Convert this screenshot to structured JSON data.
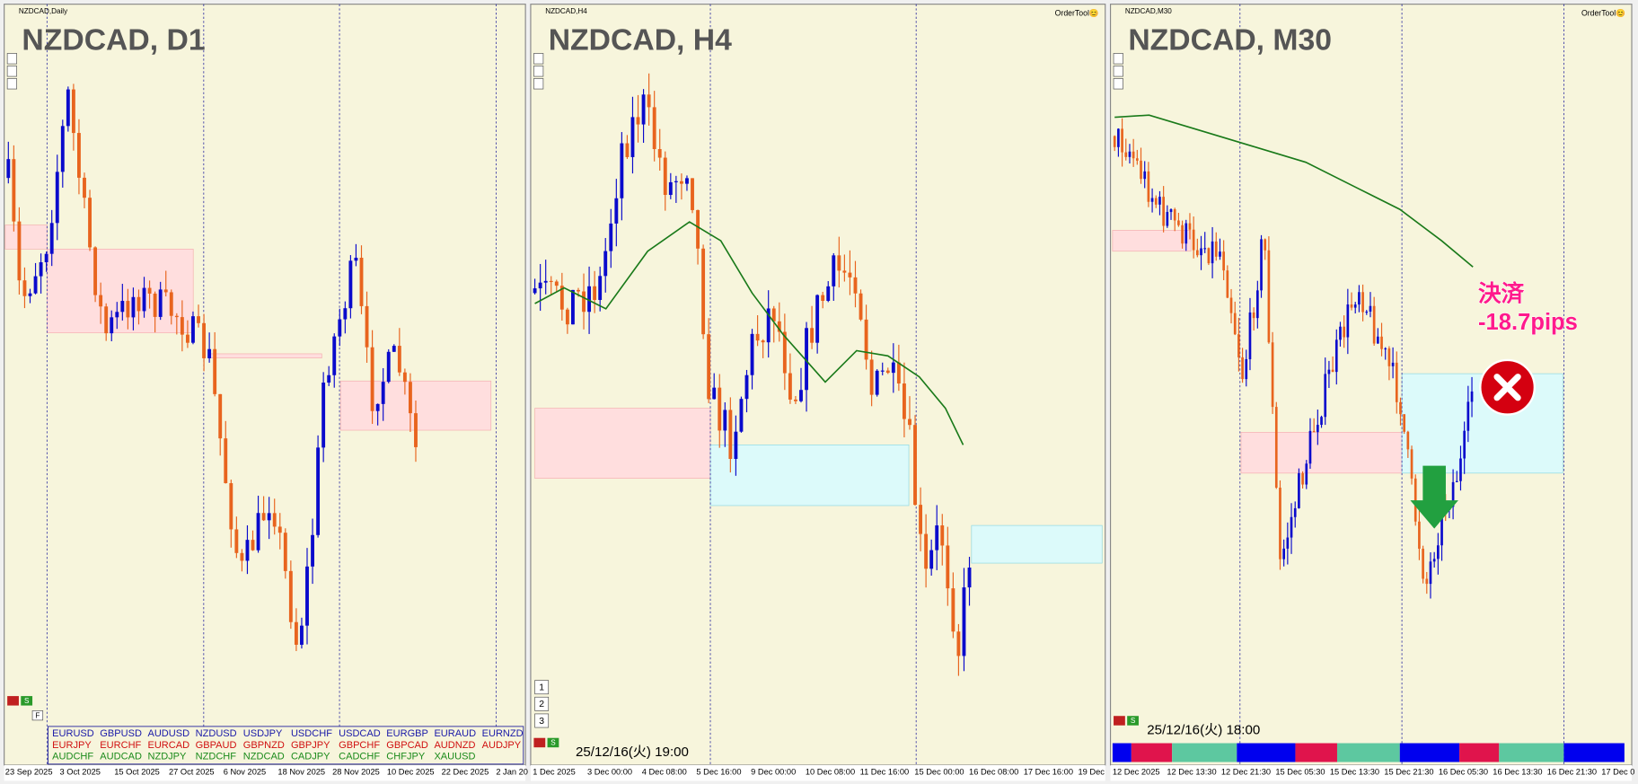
{
  "panels": [
    {
      "label": "NZDCAD,Daily",
      "title": "NZDCAD, D1",
      "x_labels": [
        "23 Sep 2025",
        "3 Oct 2025",
        "15 Oct 2025",
        "27 Oct 2025",
        "6 Nov 2025",
        "18 Nov 2025",
        "28 Nov 2025",
        "10 Dec 2025",
        "22 Dec 2025",
        "2 Jan 20"
      ]
    },
    {
      "label": "NZDCAD,H4",
      "title": "NZDCAD, H4",
      "order_tool": "OrderTool😊",
      "timestamp": "25/12/16(火) 19:00",
      "x_labels": [
        "1 Dec 2025",
        "3 Dec 00:00",
        "4 Dec 08:00",
        "5 Dec 16:00",
        "9 Dec 00:00",
        "10 Dec 08:00",
        "11 Dec 16:00",
        "15 Dec 00:00",
        "16 Dec 08:00",
        "17 Dec 16:00",
        "19 Dec"
      ]
    },
    {
      "label": "NZDCAD,M30",
      "title": "NZDCAD, M30",
      "order_tool": "OrderTool😊",
      "timestamp": "25/12/16(火) 18:00",
      "x_labels": [
        "12 Dec 2025",
        "12 Dec 13:30",
        "12 Dec 21:30",
        "15 Dec 05:30",
        "15 Dec 13:30",
        "15 Dec 21:30",
        "16 Dec 05:30",
        "16 Dec 13:30",
        "16 Dec 21:30",
        "17 Dec 0"
      ]
    }
  ],
  "symbols": [
    [
      "EURUSD",
      "GBPUSD",
      "AUDUSD",
      "NZDUSD",
      "USDJPY",
      "USDCHF",
      "USDCAD",
      "EURGBP",
      "EURAUD",
      "EURNZD"
    ],
    [
      "EURJPY",
      "EURCHF",
      "EURCAD",
      "GBPAUD",
      "GBPNZD",
      "GBPJPY",
      "GBPCHF",
      "GBPCAD",
      "AUDNZD",
      "AUDJPY"
    ],
    [
      "AUDCHF",
      "AUDCAD",
      "NZDJPY",
      "NZDCHF",
      "NZDCAD",
      "CADJPY",
      "CADCHF",
      "CHFJPY",
      "XAUUSD"
    ]
  ],
  "controls": {
    "numbers": [
      "1",
      "2",
      "3"
    ],
    "s": "S",
    "f": "F"
  },
  "annotation": {
    "line1": "決済",
    "line2": "-18.7pips"
  }
}
